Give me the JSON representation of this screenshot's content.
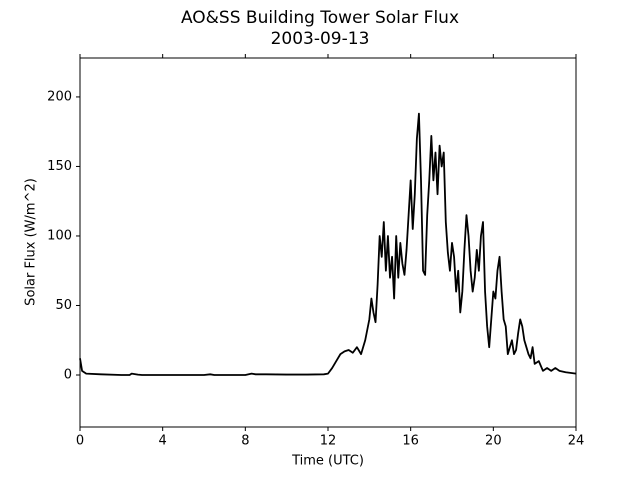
{
  "chart_data": {
    "type": "line",
    "title": "AO&SS Building Tower Solar Flux",
    "subtitle": "2003-09-13",
    "xlabel": "Time (UTC)",
    "ylabel": "Solar Flux (W/m^2)",
    "xlim": [
      0,
      24
    ],
    "xticks": [
      0,
      4,
      8,
      12,
      16,
      20,
      24
    ],
    "ylim": [
      -37.4,
      228
    ],
    "yticks": [
      0,
      50,
      100,
      150,
      200
    ],
    "series": [
      {
        "name": "Solar Flux",
        "color": "#000000",
        "x": [
          0,
          0.1,
          0.3,
          1,
          2,
          2.4,
          2.5,
          2.8,
          3,
          4,
          5,
          6,
          6.3,
          6.5,
          7,
          8,
          8.3,
          8.5,
          9,
          10,
          11,
          11.8,
          12.0,
          12.2,
          12.4,
          12.6,
          12.8,
          13.0,
          13.2,
          13.4,
          13.6,
          13.8,
          14.0,
          14.1,
          14.2,
          14.3,
          14.4,
          14.5,
          14.6,
          14.7,
          14.8,
          14.9,
          15.0,
          15.1,
          15.2,
          15.3,
          15.4,
          15.5,
          15.6,
          15.7,
          15.8,
          15.9,
          16.0,
          16.1,
          16.2,
          16.3,
          16.4,
          16.5,
          16.6,
          16.7,
          16.8,
          16.9,
          17.0,
          17.1,
          17.2,
          17.3,
          17.4,
          17.5,
          17.6,
          17.7,
          17.8,
          17.9,
          18.0,
          18.1,
          18.2,
          18.3,
          18.4,
          18.5,
          18.6,
          18.7,
          18.8,
          18.9,
          19.0,
          19.1,
          19.2,
          19.3,
          19.4,
          19.5,
          19.6,
          19.7,
          19.8,
          19.9,
          20.0,
          20.1,
          20.2,
          20.3,
          20.4,
          20.5,
          20.6,
          20.7,
          20.8,
          20.9,
          21.0,
          21.1,
          21.2,
          21.3,
          21.4,
          21.5,
          21.6,
          21.7,
          21.8,
          21.9,
          22.0,
          22.2,
          22.4,
          22.6,
          22.8,
          23.0,
          23.2,
          23.5,
          24
        ],
        "values": [
          12,
          3,
          1,
          0.5,
          0,
          0,
          1,
          0.3,
          0,
          0,
          0,
          0,
          0.5,
          0,
          0,
          0,
          1,
          0.5,
          0.5,
          0.3,
          0.3,
          0.5,
          1,
          5,
          10,
          15,
          17,
          18,
          16,
          20,
          15,
          25,
          40,
          55,
          45,
          38,
          65,
          100,
          85,
          110,
          75,
          100,
          70,
          85,
          55,
          100,
          70,
          95,
          80,
          72,
          90,
          115,
          140,
          105,
          130,
          170,
          188,
          140,
          75,
          72,
          115,
          140,
          172,
          140,
          160,
          130,
          165,
          150,
          160,
          110,
          88,
          75,
          95,
          85,
          60,
          75,
          45,
          60,
          90,
          115,
          100,
          75,
          60,
          70,
          90,
          75,
          100,
          110,
          60,
          35,
          20,
          40,
          60,
          55,
          75,
          85,
          60,
          40,
          35,
          15,
          20,
          25,
          15,
          18,
          30,
          40,
          35,
          25,
          20,
          15,
          12,
          20,
          8,
          10,
          3,
          5,
          3,
          5,
          3,
          2,
          1
        ]
      }
    ]
  }
}
